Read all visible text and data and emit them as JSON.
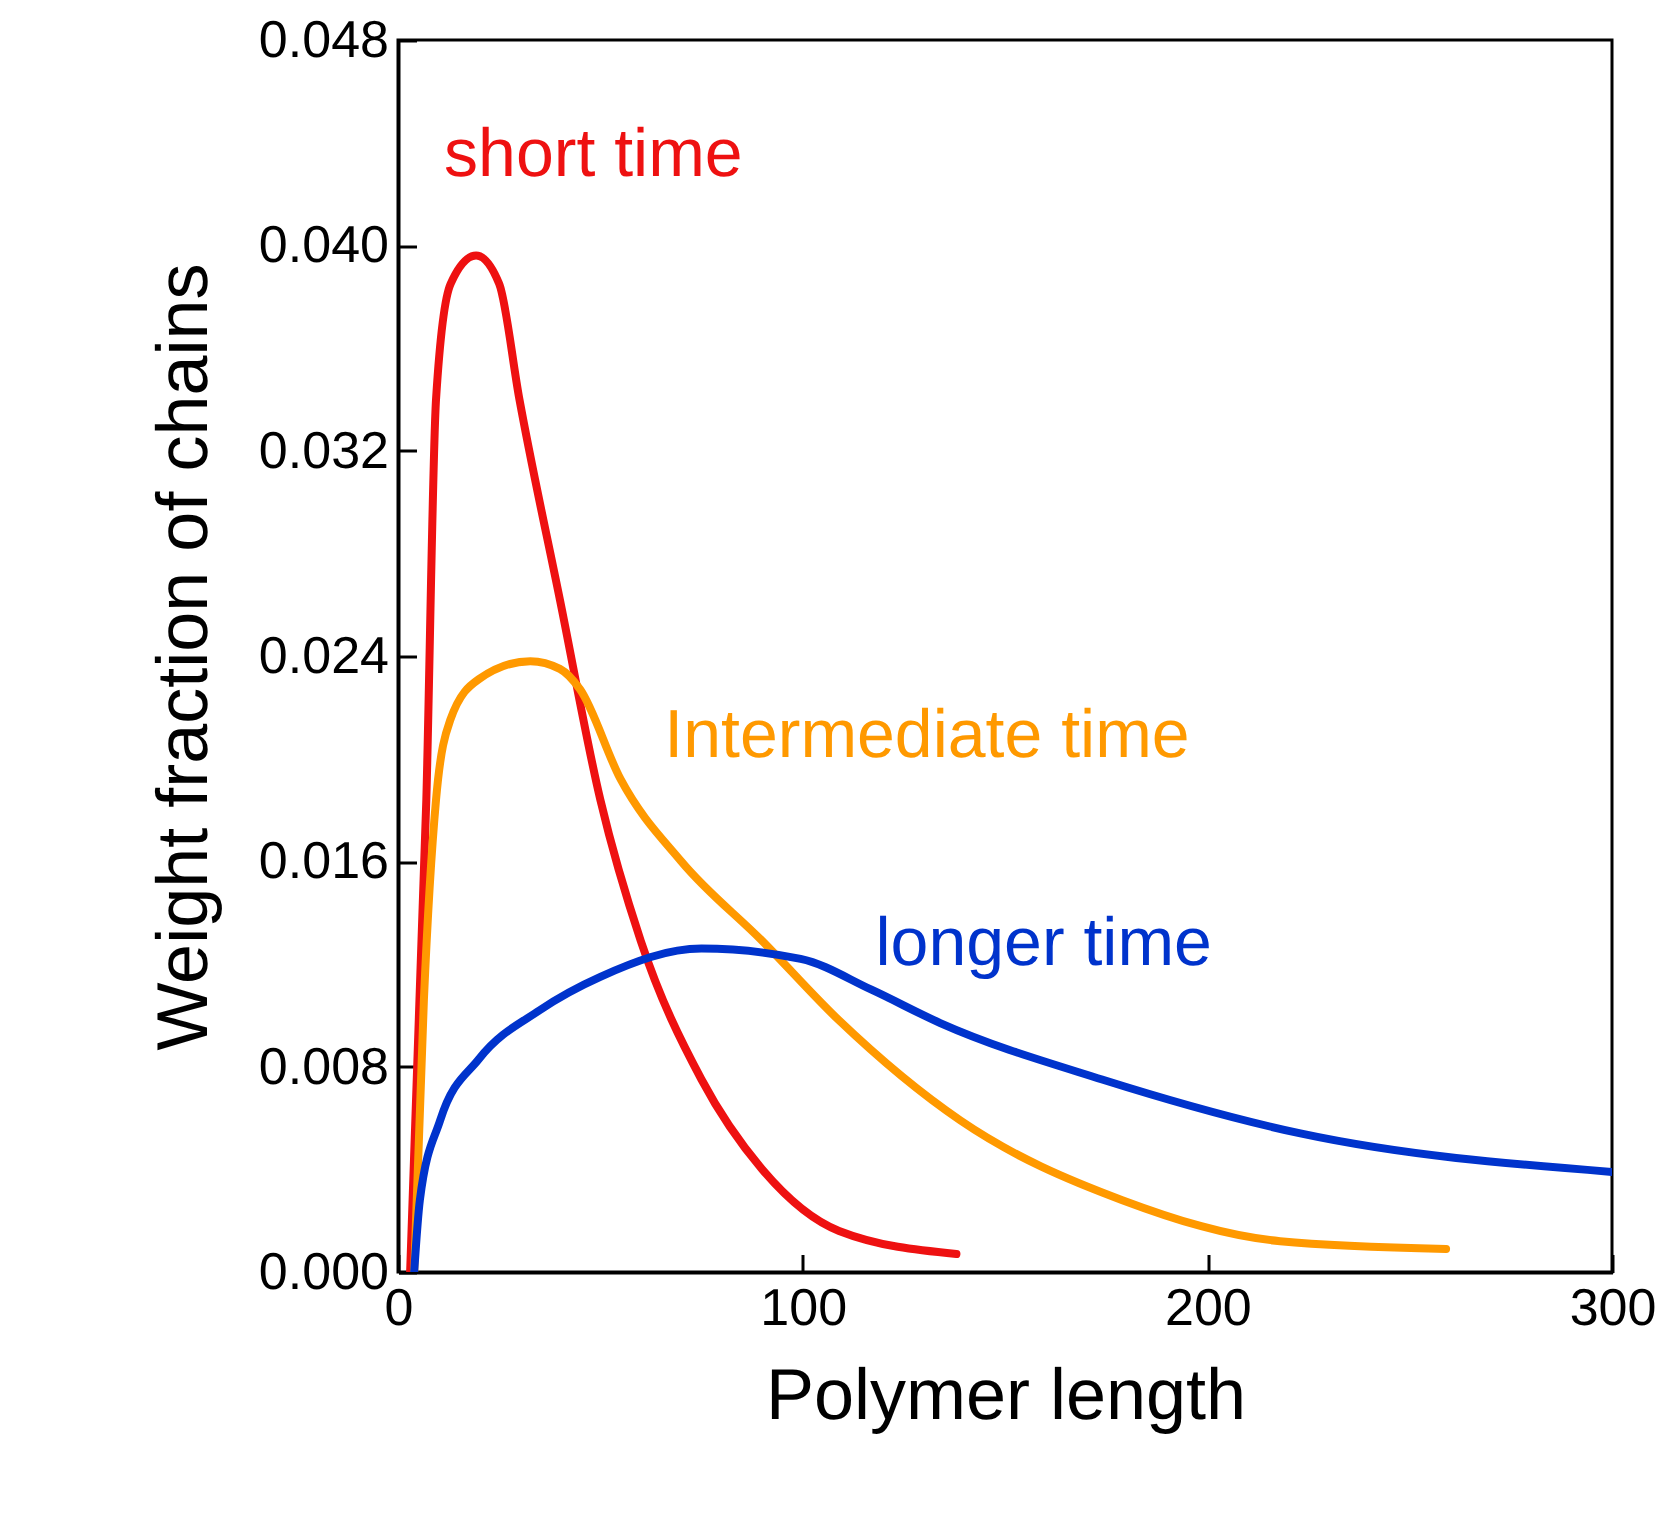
{
  "chart_data": {
    "type": "line",
    "xlabel": "Polymer length",
    "ylabel": "Weight fraction of chains",
    "xlim": [
      0,
      300
    ],
    "ylim": [
      0,
      0.048
    ],
    "xticks": [
      0,
      100,
      200,
      300
    ],
    "yticks": [
      {
        "value": 0,
        "label": "0.000"
      },
      {
        "value": 0.008,
        "label": "0.008"
      },
      {
        "value": 0.016,
        "label": "0.016"
      },
      {
        "value": 0.024,
        "label": "0.024"
      },
      {
        "value": 0.032,
        "label": "0.032"
      },
      {
        "value": 0.04,
        "label": "0.040"
      },
      {
        "value": 0.048,
        "label": "0.048"
      }
    ],
    "grid": false,
    "legend": false,
    "marker": "none",
    "line_style": "solid",
    "series": [
      {
        "name": "short time",
        "color": "#ee1111",
        "x": [
          3,
          7,
          9.4,
          13,
          19.3,
          25,
          30,
          40,
          50,
          60,
          75,
          90,
          109,
          138
        ],
        "values": [
          0,
          0.0184,
          0.034,
          0.0385,
          0.0396,
          0.0385,
          0.034,
          0.0262,
          0.0184,
          0.0129,
          0.0075,
          0.004,
          0.0016,
          0.0007
        ]
      },
      {
        "name": "Intermediate time",
        "color": "#ff9900",
        "x": [
          4,
          6.4,
          9.4,
          12.9,
          20,
          32.7,
          40,
          45,
          55,
          70,
          90,
          109,
          139,
          179,
          218,
          259
        ],
        "values": [
          0,
          0.0106,
          0.0184,
          0.0215,
          0.0231,
          0.0238,
          0.0235,
          0.0227,
          0.0192,
          0.016,
          0.0129,
          0.0098,
          0.0059,
          0.0028,
          0.0012,
          0.0009
        ]
      },
      {
        "name": "longer time",
        "color": "#0033cc",
        "x": [
          4,
          5.4,
          10.4,
          20,
          35,
          50,
          75,
          99.5,
          117,
          134,
          174,
          223,
          300
        ],
        "values": [
          0,
          0.0028,
          0.0059,
          0.0083,
          0.0102,
          0.0115,
          0.0126,
          0.0122,
          0.011,
          0.0097,
          0.0075,
          0.0054,
          0.0039
        ]
      }
    ]
  }
}
